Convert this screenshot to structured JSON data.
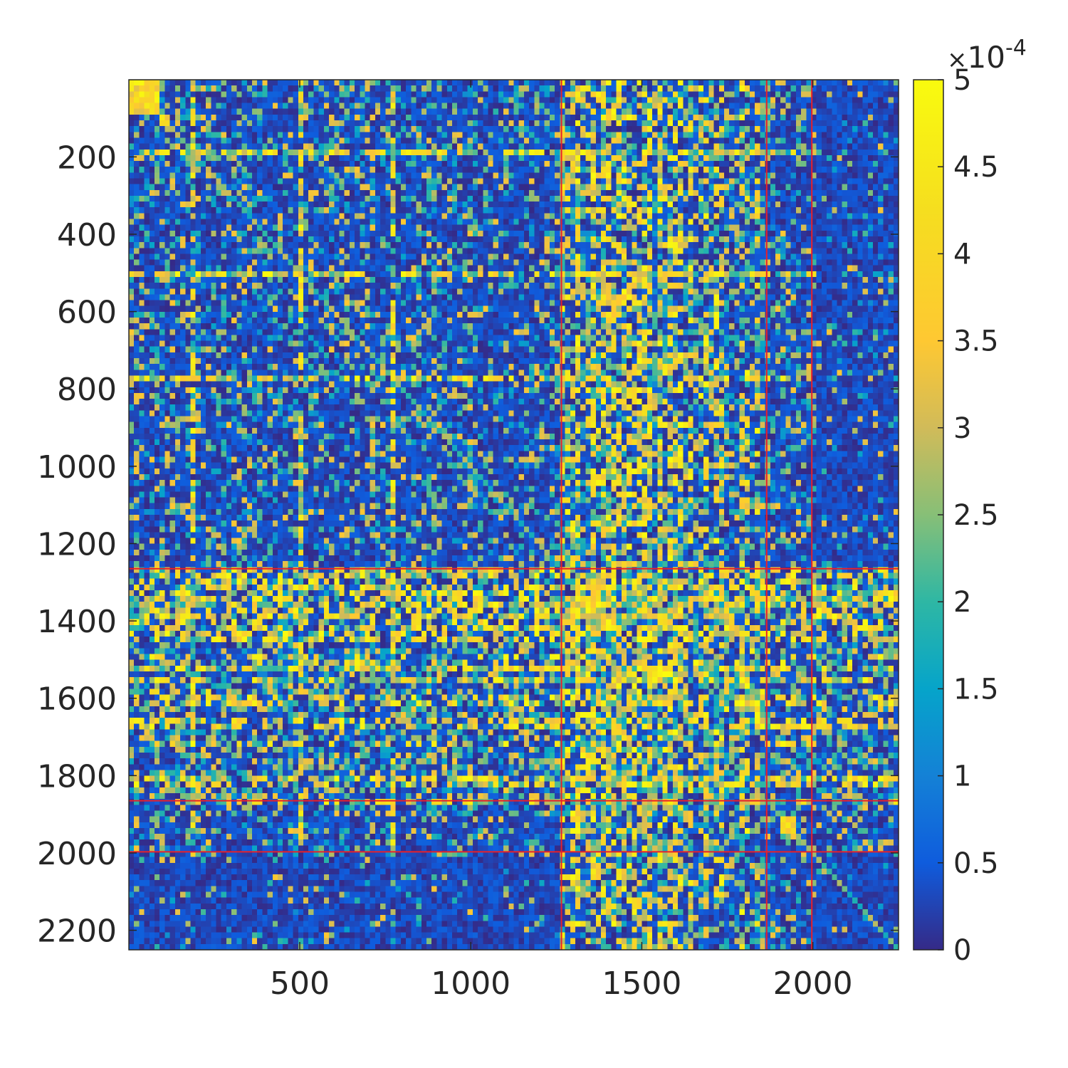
{
  "chart_data": {
    "type": "heatmap",
    "title": "",
    "xlabel": "",
    "ylabel": "",
    "n": 2250,
    "xlim": [
      1,
      2250
    ],
    "ylim": [
      1,
      2250
    ],
    "y_reversed": true,
    "x_ticks": [
      500,
      1000,
      1500,
      2000
    ],
    "x_tick_labels": [
      "500",
      "1000",
      "1500",
      "2000"
    ],
    "y_ticks": [
      200,
      400,
      600,
      800,
      1000,
      1200,
      1400,
      1600,
      1800,
      2000,
      2200
    ],
    "y_tick_labels": [
      "200",
      "400",
      "600",
      "800",
      "1000",
      "1200",
      "1400",
      "1600",
      "1800",
      "2000",
      "2200"
    ],
    "colorbar": {
      "min": 0,
      "max": 5,
      "ticks": [
        0,
        0.5,
        1,
        1.5,
        2,
        2.5,
        3,
        3.5,
        4,
        4.5,
        5
      ],
      "tick_labels": [
        "0",
        "0.5",
        "1",
        "1.5",
        "2",
        "2.5",
        "3",
        "3.5",
        "4",
        "4.5",
        "5"
      ],
      "multiplier_symbol": "×",
      "multiplier_base": "10",
      "multiplier_exponent": "-4",
      "colormap": "parula"
    },
    "block_boundaries": [
      1265,
      1865,
      1997
    ],
    "boundary_color": "#e8202a",
    "background_color": "#3a2aa5",
    "high_value_color": "#f5e50f",
    "bright_bands": [
      {
        "start": 1265,
        "end": 1865,
        "level": 0.85
      },
      {
        "start": 1320,
        "end": 1420,
        "level": 1.0
      }
    ],
    "bright_lines": [
      190,
      510,
      780,
      1360,
      1390,
      1520,
      1550
    ],
    "diagonal_blocks": [
      {
        "start": 10,
        "end": 90
      },
      {
        "start": 100,
        "end": 120
      },
      {
        "start": 1520,
        "end": 1560
      },
      {
        "start": 1920,
        "end": 1950
      }
    ]
  }
}
